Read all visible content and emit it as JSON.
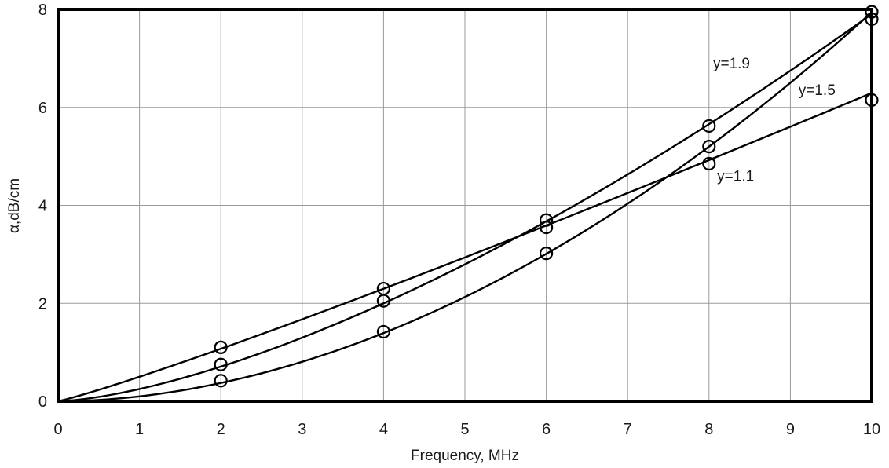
{
  "chart_data": {
    "type": "line",
    "title": "",
    "xlabel": "Frequency, MHz",
    "ylabel": "α,dB/cm",
    "xlim": [
      0,
      10
    ],
    "ylim": [
      0,
      8
    ],
    "x_ticks": [
      0,
      1,
      2,
      3,
      4,
      5,
      6,
      7,
      8,
      9,
      10
    ],
    "y_ticks": [
      0,
      2,
      4,
      6,
      8
    ],
    "grid": true,
    "legend": "none",
    "series": [
      {
        "label": "y=1.1",
        "exponent": 1.1,
        "line": {
          "coef": 0.5,
          "exp": 1.1
        },
        "points": [
          [
            2,
            1.1
          ],
          [
            4,
            2.3
          ],
          [
            6,
            3.7
          ],
          [
            8,
            4.85
          ],
          [
            10,
            6.15
          ]
        ],
        "label_at": [
          8.1,
          4.5
        ]
      },
      {
        "label": "y=1.5",
        "exponent": 1.5,
        "line": {
          "coef": 0.25,
          "exp": 1.5
        },
        "points": [
          [
            2,
            0.75
          ],
          [
            4,
            2.05
          ],
          [
            6,
            3.55
          ],
          [
            8,
            5.2
          ],
          [
            10,
            7.8
          ]
        ],
        "label_at": [
          9.1,
          6.25
        ]
      },
      {
        "label": "y=1.9",
        "exponent": 1.9,
        "line": {
          "coef": 0.1,
          "exp": 1.9
        },
        "points": [
          [
            2,
            0.42
          ],
          [
            4,
            1.42
          ],
          [
            6,
            3.02
          ],
          [
            8,
            5.62
          ],
          [
            10,
            7.95
          ]
        ],
        "label_at": [
          8.05,
          6.8
        ]
      }
    ]
  }
}
